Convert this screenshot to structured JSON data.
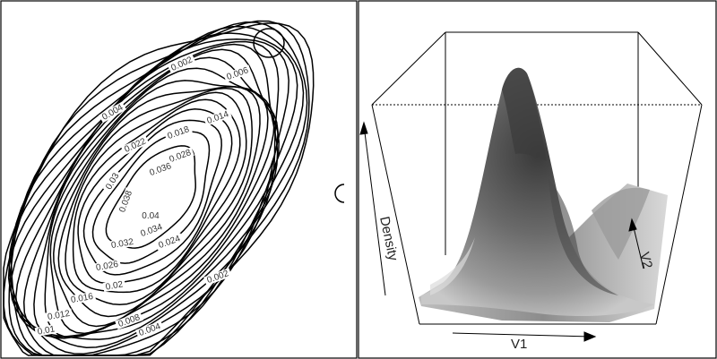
{
  "chart_data": [
    {
      "type": "contour",
      "title": "",
      "xlabel": "",
      "ylabel": "",
      "levels": [
        0.002,
        0.004,
        0.006,
        0.008,
        0.01,
        0.012,
        0.014,
        0.016,
        0.018,
        0.02,
        0.022,
        0.024,
        0.026,
        0.028,
        0.03,
        0.032,
        0.034,
        0.036,
        0.038,
        0.04
      ],
      "contour_labels": [
        "0.002",
        "0.006",
        "0.004",
        "0.014",
        "0.018",
        "0.022",
        "0.028",
        "0.036",
        "0.03",
        "0.038",
        "0.04",
        "0.034",
        "0.032",
        "0.024",
        "0.026",
        "0.002",
        "0.02",
        "0.016",
        "0.012",
        "0.008",
        "0.01",
        "0.004"
      ],
      "peak_level": 0.04
    },
    {
      "type": "surface",
      "title": "",
      "xlabel": "V1",
      "ylabel": "V2",
      "zlabel": "Density"
    }
  ]
}
